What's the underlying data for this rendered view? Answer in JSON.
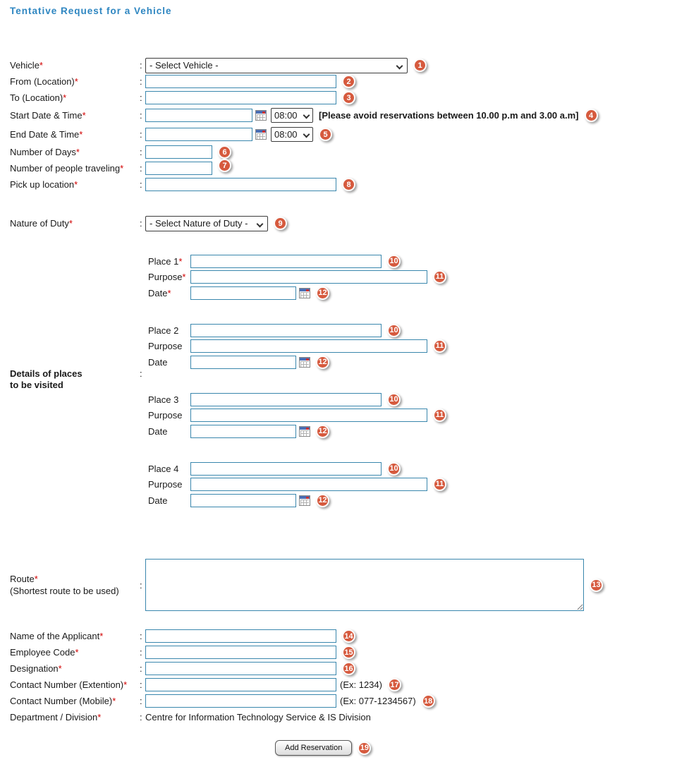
{
  "title": "Tentative Request for a Vehicle",
  "colors": {
    "accent": "#2E86C1",
    "badge": "#D65A3E",
    "input_border": "#3A87AD",
    "required": "#D20000"
  },
  "form": {
    "colon": ":",
    "vehicle": {
      "label": "Vehicle",
      "star": "*",
      "select_value": "- Select Vehicle -",
      "badge": "1"
    },
    "from": {
      "label": "From (Location)",
      "star": "*",
      "badge": "2"
    },
    "to": {
      "label": "To (Location)",
      "star": "*",
      "badge": "3"
    },
    "start": {
      "label": "Start Date & Time",
      "star": "*",
      "time_value": "08:00",
      "note": "[Please avoid reservations between 10.00 p.m and 3.00 a.m]",
      "badge": "4"
    },
    "end": {
      "label": "End Date & Time",
      "star": "*",
      "time_value": "08:00",
      "badge": "5"
    },
    "days": {
      "label": "Number of Days",
      "star": "*",
      "badge": "6"
    },
    "people": {
      "label": "Number of people traveling",
      "star": "*",
      "badge": "7"
    },
    "pickup": {
      "label": "Pick up location",
      "star": "*",
      "badge": "8"
    },
    "nature": {
      "label": "Nature of Duty",
      "star": "*",
      "select_value": "- Select Nature of Duty -",
      "badge": "9"
    },
    "places": {
      "section_label_line1": "Details of places",
      "section_label_line2": "to be visited",
      "badge_place": "10",
      "badge_purpose": "11",
      "badge_date": "12",
      "groups": [
        {
          "place_label": "Place 1",
          "place_star": "*",
          "purpose_label": "Purpose",
          "purpose_star": "*",
          "date_label": "Date",
          "date_star": "*"
        },
        {
          "place_label": "Place 2",
          "place_star": "",
          "purpose_label": "Purpose",
          "purpose_star": "",
          "date_label": "Date",
          "date_star": ""
        },
        {
          "place_label": "Place 3",
          "place_star": "",
          "purpose_label": "Purpose",
          "purpose_star": "",
          "date_label": "Date",
          "date_star": ""
        },
        {
          "place_label": "Place 4",
          "place_star": "",
          "purpose_label": "Purpose",
          "purpose_star": "",
          "date_label": "Date",
          "date_star": ""
        }
      ]
    },
    "route": {
      "label": "Route",
      "star": "*",
      "sublabel": "(Shortest route to be used)",
      "badge": "13"
    },
    "applicant_name": {
      "label": "Name of the Applicant",
      "star": "*",
      "badge": "14"
    },
    "employee_code": {
      "label": "Employee Code",
      "star": "*",
      "badge": "15"
    },
    "designation": {
      "label": "Designation",
      "star": "*",
      "badge": "16"
    },
    "contact_ext": {
      "label": "Contact Number (Extention)",
      "star": "*",
      "hint": "(Ex: 1234)",
      "badge": "17"
    },
    "contact_mobile": {
      "label": "Contact Number (Mobile)",
      "star": "*",
      "hint": "(Ex: 077-1234567)",
      "badge": "18"
    },
    "department": {
      "label": "Department / Division",
      "star": "*",
      "value": "Centre for Information Technology Service & IS Division"
    },
    "submit": {
      "label": "Add Reservation",
      "badge": "19"
    }
  }
}
